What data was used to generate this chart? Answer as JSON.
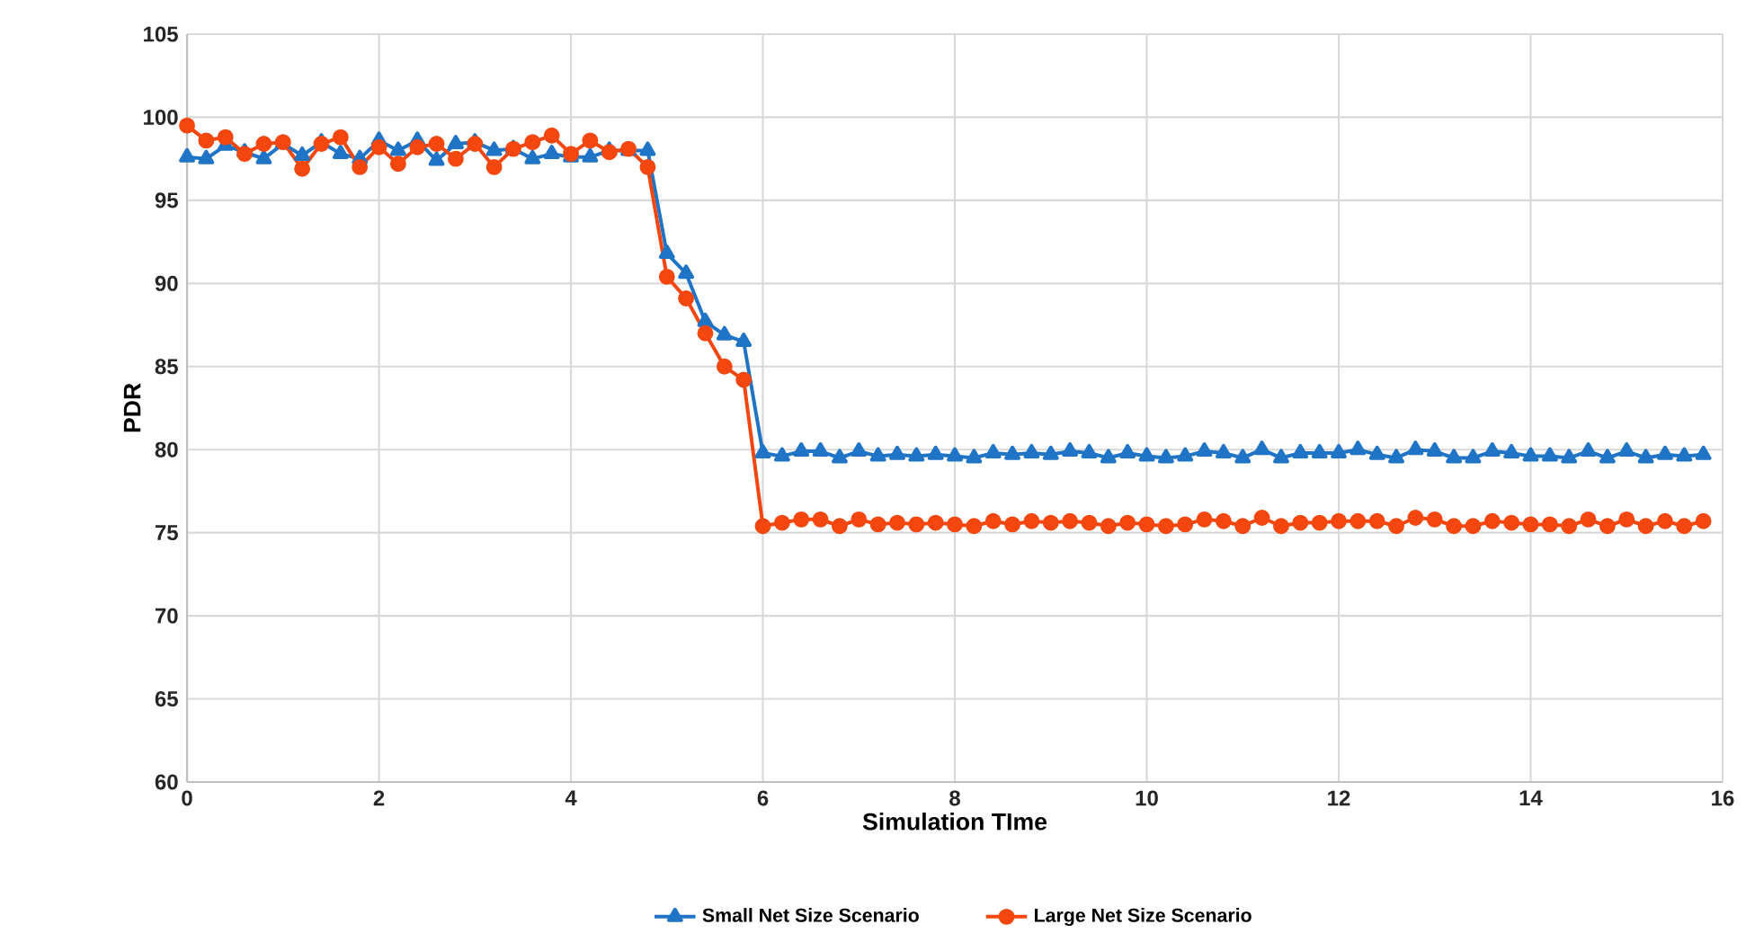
{
  "chart_data": {
    "type": "line",
    "xlabel": "Simulation TIme",
    "ylabel": "PDR",
    "x": [
      0,
      0.2,
      0.4,
      0.6,
      0.8,
      1,
      1.2,
      1.4,
      1.6,
      1.8,
      2,
      2.2,
      2.4,
      2.6,
      2.8,
      3,
      3.2,
      3.4,
      3.6,
      3.8,
      4,
      4.2,
      4.4,
      4.6,
      4.8,
      5,
      5.2,
      5.4,
      5.6,
      5.8,
      6,
      6.2,
      6.4,
      6.6,
      6.8,
      7,
      7.2,
      7.4,
      7.6,
      7.8,
      8,
      8.2,
      8.4,
      8.6,
      8.8,
      9,
      9.2,
      9.4,
      9.6,
      9.8,
      10,
      10.2,
      10.4,
      10.6,
      10.8,
      11,
      11.2,
      11.4,
      11.6,
      11.8,
      12,
      12.2,
      12.4,
      12.6,
      12.8,
      13,
      13.2,
      13.4,
      13.6,
      13.8,
      14,
      14.2,
      14.4,
      14.6,
      14.8,
      15,
      15.2,
      15.4,
      15.6,
      15.8
    ],
    "series": [
      {
        "name": "Small Net Size Scenario",
        "color": "#1f74c6",
        "marker": "triangle",
        "values": [
          97.6,
          97.5,
          98.3,
          97.9,
          97.5,
          98.4,
          97.7,
          98.5,
          97.8,
          97.5,
          98.6,
          98.0,
          98.6,
          97.4,
          98.4,
          98.5,
          98.0,
          98.1,
          97.5,
          97.8,
          97.6,
          97.6,
          98.0,
          98.0,
          98.0,
          91.8,
          90.6,
          87.7,
          86.9,
          86.5,
          79.8,
          79.6,
          79.9,
          79.9,
          79.5,
          79.9,
          79.6,
          79.7,
          79.6,
          79.7,
          79.6,
          79.5,
          79.8,
          79.7,
          79.8,
          79.7,
          79.9,
          79.8,
          79.5,
          79.8,
          79.6,
          79.5,
          79.6,
          79.9,
          79.8,
          79.5,
          80.0,
          79.5,
          79.8,
          79.8,
          79.8,
          80.0,
          79.7,
          79.5,
          80.0,
          79.9,
          79.5,
          79.5,
          79.9,
          79.8,
          79.6,
          79.6,
          79.5,
          79.9,
          79.5,
          79.9,
          79.5,
          79.7,
          79.6,
          79.7
        ]
      },
      {
        "name": "Large Net Size Scenario",
        "color": "#f4470f",
        "marker": "circle",
        "values": [
          99.5,
          98.6,
          98.8,
          97.8,
          98.4,
          98.5,
          96.9,
          98.4,
          98.8,
          97.0,
          98.2,
          97.2,
          98.2,
          98.4,
          97.5,
          98.4,
          97.0,
          98.1,
          98.5,
          98.9,
          97.8,
          98.6,
          97.9,
          98.1,
          97.0,
          90.4,
          89.1,
          87.0,
          85.0,
          84.2,
          75.4,
          75.6,
          75.8,
          75.8,
          75.4,
          75.8,
          75.5,
          75.6,
          75.5,
          75.6,
          75.5,
          75.4,
          75.7,
          75.5,
          75.7,
          75.6,
          75.7,
          75.6,
          75.4,
          75.6,
          75.5,
          75.4,
          75.5,
          75.8,
          75.7,
          75.4,
          75.9,
          75.4,
          75.6,
          75.6,
          75.7,
          75.7,
          75.7,
          75.4,
          75.9,
          75.8,
          75.4,
          75.4,
          75.7,
          75.6,
          75.5,
          75.5,
          75.4,
          75.8,
          75.4,
          75.8,
          75.4,
          75.7,
          75.4,
          75.7
        ]
      }
    ],
    "xlim": [
      0,
      16
    ],
    "xticks": [
      0,
      2,
      4,
      6,
      8,
      10,
      12,
      14,
      16
    ],
    "ylim": [
      60,
      105
    ],
    "yticks": [
      60,
      65,
      70,
      75,
      80,
      85,
      90,
      95,
      100,
      105
    ],
    "grid": true,
    "legend": "bottom",
    "line_style": "solid"
  }
}
